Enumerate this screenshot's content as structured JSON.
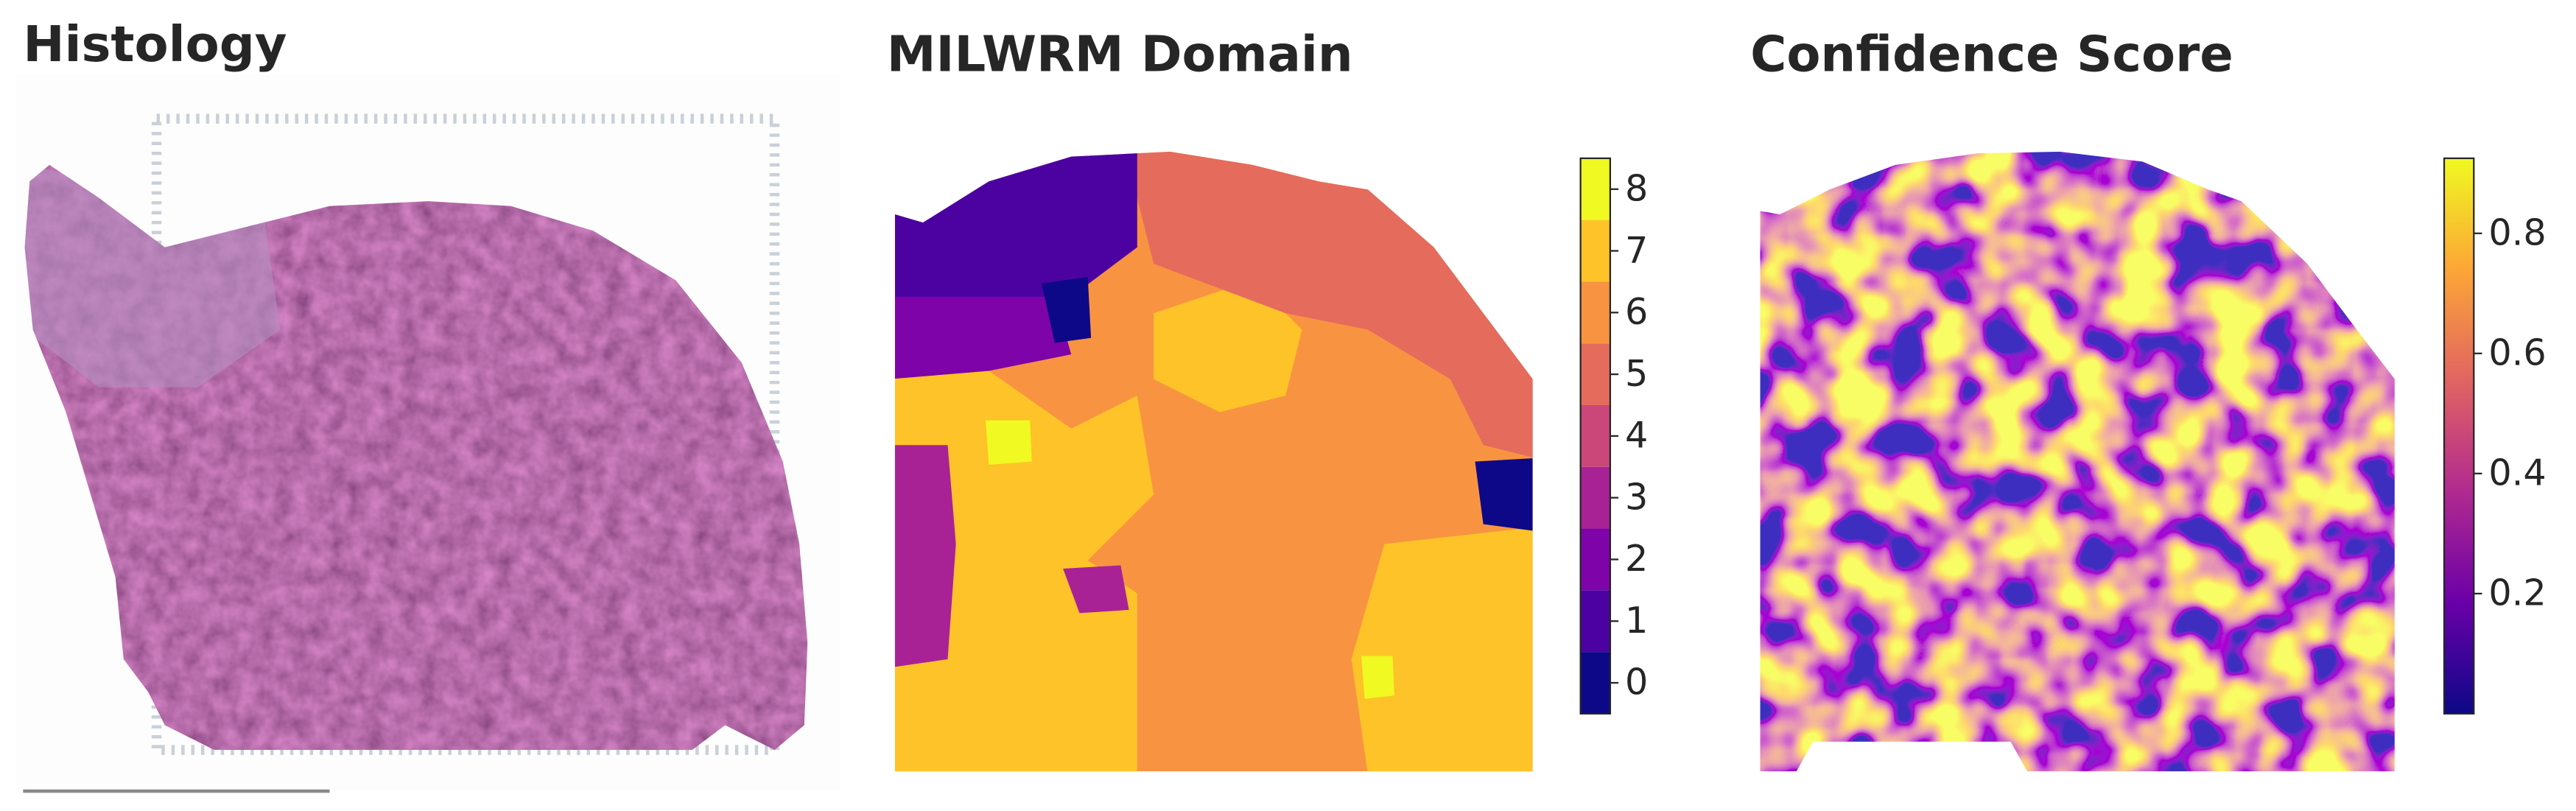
{
  "chart_data": [
    {
      "type": "image",
      "title": "Histology"
    },
    {
      "type": "domain_map",
      "title": "MILWRM Domain",
      "clim": [
        -0.5,
        8.5
      ],
      "cticks": [
        0,
        1,
        2,
        3,
        4,
        5,
        6,
        7,
        8
      ],
      "colors": [
        "#0d0887",
        "#4c02a1",
        "#7e03a8",
        "#a82296",
        "#cb4679",
        "#e56b5d",
        "#f89441",
        "#fdc328",
        "#f0f921"
      ]
    },
    {
      "type": "score_map",
      "title": "Confidence Score",
      "clim": [
        0,
        0.925
      ],
      "cticks": [
        0.2,
        0.4,
        0.6,
        0.8
      ],
      "colormap": "plasma"
    }
  ]
}
